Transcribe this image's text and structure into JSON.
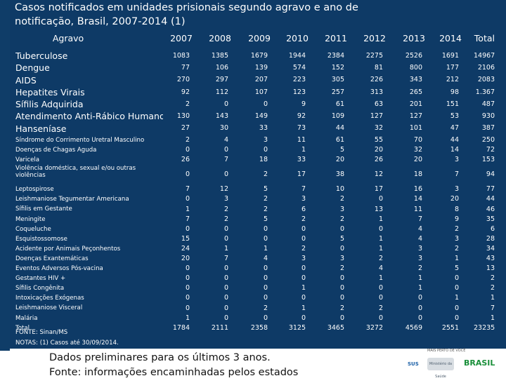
{
  "title": "Casos notificados em unidades prisionais segundo agravo e ano de notificação, Brasil, 2007-2014 (1)",
  "headers": {
    "agravo": "Agravo",
    "years": [
      "2007",
      "2008",
      "2009",
      "2010",
      "2011",
      "2012",
      "2013",
      "2014"
    ],
    "total": "Total"
  },
  "big_rows": [
    {
      "label": "Tuberculose",
      "values": [
        "1083",
        "1385",
        "1679",
        "1944",
        "2384",
        "2275",
        "2526",
        "1691"
      ],
      "total": "14967"
    },
    {
      "label": "Dengue",
      "values": [
        "77",
        "106",
        "139",
        "574",
        "152",
        "81",
        "800",
        "177"
      ],
      "total": "2106"
    },
    {
      "label": "AIDS",
      "values": [
        "270",
        "297",
        "207",
        "223",
        "305",
        "226",
        "343",
        "212"
      ],
      "total": "2083"
    },
    {
      "label": "Hepatites Virais",
      "values": [
        "92",
        "112",
        "107",
        "123",
        "257",
        "313",
        "265",
        "98"
      ],
      "total": "1.367"
    },
    {
      "label": "Sífilis Adquirida",
      "values": [
        "2",
        "0",
        "0",
        "9",
        "61",
        "63",
        "201",
        "151"
      ],
      "total": "487"
    },
    {
      "label": "Atendimento Anti-Rábico Humano",
      "values": [
        "130",
        "143",
        "149",
        "92",
        "109",
        "127",
        "127",
        "53"
      ],
      "total": "930"
    },
    {
      "label": "Hanseníase",
      "values": [
        "27",
        "30",
        "33",
        "73",
        "44",
        "32",
        "101",
        "47"
      ],
      "total": "387"
    }
  ],
  "small_rows": [
    {
      "label": "Síndrome do Corrimento Uretral Masculino",
      "values": [
        "2",
        "4",
        "3",
        "11",
        "61",
        "55",
        "70",
        "44"
      ],
      "total": "250"
    },
    {
      "label": "Doenças de Chagas Aguda",
      "values": [
        "0",
        "0",
        "0",
        "1",
        "5",
        "20",
        "32",
        "14"
      ],
      "total": "72"
    },
    {
      "label": "Varicela",
      "values": [
        "26",
        "7",
        "18",
        "33",
        "20",
        "26",
        "20",
        "3"
      ],
      "total": "153"
    },
    {
      "label": "Violência doméstica, sexual e/ou outras violências",
      "two": true,
      "values": [
        "0",
        "0",
        "2",
        "17",
        "38",
        "12",
        "18",
        "7"
      ],
      "total": "94"
    },
    {
      "label": "Leptospirose",
      "values": [
        "7",
        "12",
        "5",
        "7",
        "10",
        "17",
        "16",
        "3"
      ],
      "total": "77"
    },
    {
      "label": "Leishmaniose Tegumentar Americana",
      "values": [
        "0",
        "3",
        "2",
        "3",
        "2",
        "0",
        "14",
        "20"
      ],
      "total": "44"
    },
    {
      "label": "Sífilis em Gestante",
      "values": [
        "1",
        "2",
        "2",
        "6",
        "3",
        "13",
        "11",
        "8"
      ],
      "total": "46"
    },
    {
      "label": "Meningite",
      "values": [
        "7",
        "2",
        "5",
        "2",
        "2",
        "1",
        "7",
        "9"
      ],
      "total": "35"
    },
    {
      "label": "Coqueluche",
      "values": [
        "0",
        "0",
        "0",
        "0",
        "0",
        "0",
        "4",
        "2"
      ],
      "total": "6"
    },
    {
      "label": "Esquistossomose",
      "values": [
        "15",
        "0",
        "0",
        "0",
        "5",
        "1",
        "4",
        "3"
      ],
      "total": "28"
    },
    {
      "label": "Acidente por Animais Peçonhentos",
      "values": [
        "24",
        "1",
        "1",
        "2",
        "0",
        "1",
        "3",
        "2"
      ],
      "total": "34"
    },
    {
      "label": "Doenças Exantemáticas",
      "values": [
        "20",
        "7",
        "4",
        "3",
        "3",
        "2",
        "3",
        "1"
      ],
      "total": "43"
    },
    {
      "label": "Eventos Adversos Pós-vacina",
      "values": [
        "0",
        "0",
        "0",
        "0",
        "2",
        "4",
        "2",
        "5"
      ],
      "total": "13"
    },
    {
      "label": "Gestantes HIV +",
      "values": [
        "0",
        "0",
        "0",
        "0",
        "0",
        "1",
        "1",
        "0"
      ],
      "total": "2"
    },
    {
      "label": "Sífilis Congênita",
      "values": [
        "0",
        "0",
        "0",
        "1",
        "0",
        "0",
        "1",
        "0"
      ],
      "total": "2"
    },
    {
      "label": "Intoxicações Exógenas",
      "values": [
        "0",
        "0",
        "0",
        "0",
        "0",
        "0",
        "0",
        "1"
      ],
      "total": "1"
    },
    {
      "label": "Leishmaniose Visceral",
      "values": [
        "0",
        "0",
        "2",
        "1",
        "2",
        "2",
        "0",
        "0"
      ],
      "total": "7"
    },
    {
      "label": "Malária",
      "values": [
        "1",
        "0",
        "0",
        "0",
        "0",
        "0",
        "0",
        "0"
      ],
      "total": "1"
    },
    {
      "label": "Total",
      "values": [
        "1784",
        "2111",
        "2358",
        "3125",
        "3465",
        "3272",
        "4569",
        "2551"
      ],
      "total": "23235"
    }
  ],
  "source": "FONTE: Sinan/MS",
  "notes": "NOTAS: (1) Casos até 30/09/2014.",
  "bottom_text_1": "Dados preliminares para os últimos 3 anos.",
  "bottom_text_2": "Fonte: informações encaminhadas pelos estados",
  "logos": {
    "tagline": "MAIS PERTO DE VOCÊ",
    "sus": "SUS",
    "ministry": "Ministério da Saúde",
    "brasil": "BRASIL"
  }
}
